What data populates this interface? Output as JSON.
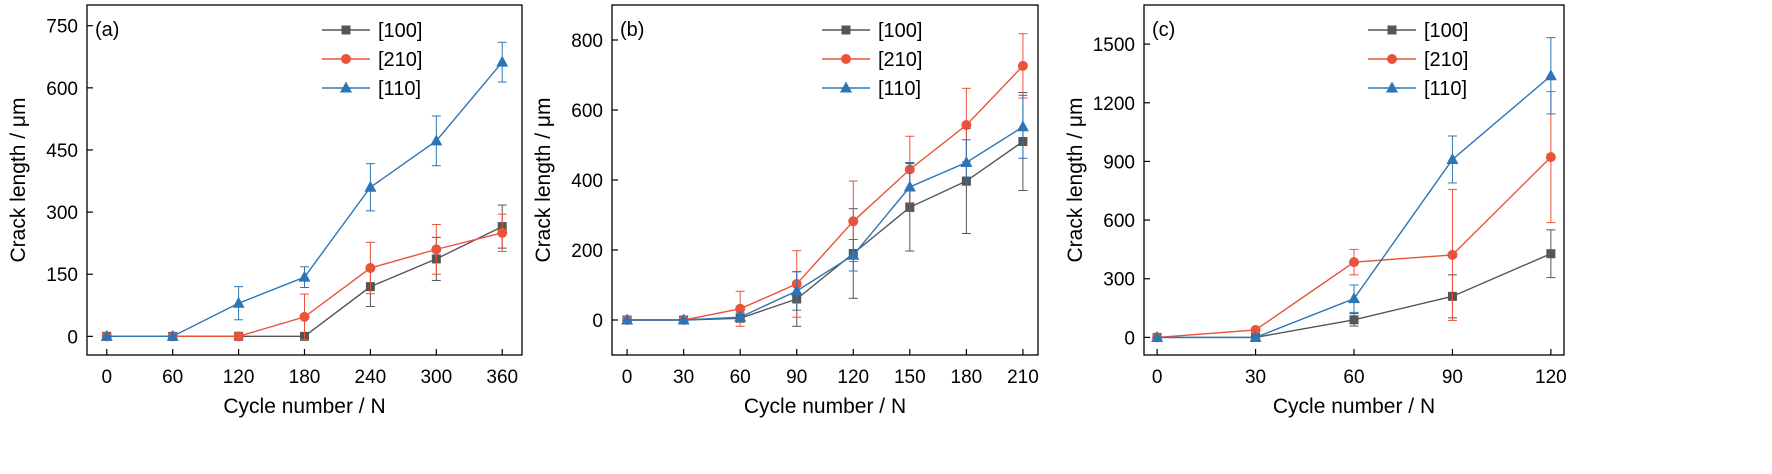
{
  "chart_data": [
    {
      "type": "line",
      "panel_label": "(a)",
      "xlabel": "Cycle number / N",
      "ylabel": "Crack length / μm",
      "x": [
        0,
        60,
        120,
        180,
        240,
        300,
        360
      ],
      "xticks": [
        "0",
        "60",
        "120",
        "180",
        "240",
        "300",
        "360"
      ],
      "yticks": [
        "0",
        "150",
        "300",
        "450",
        "600",
        "750"
      ],
      "xlim": [
        -18,
        378
      ],
      "ylim": [
        -45,
        800
      ],
      "grid": false,
      "legend": "top-right",
      "series": [
        {
          "name": "[100]",
          "color": "#555555",
          "marker": "square",
          "values": [
            0,
            0,
            0,
            0,
            120,
            187,
            265
          ],
          "errors": [
            0,
            0,
            0,
            0,
            48,
            52,
            52
          ]
        },
        {
          "name": "[210]",
          "color": "#e8533a",
          "marker": "circle",
          "values": [
            0,
            0,
            0,
            47,
            165,
            210,
            250
          ],
          "errors": [
            0,
            0,
            0,
            55,
            62,
            60,
            45
          ]
        },
        {
          "name": "[110]",
          "color": "#2e75b6",
          "marker": "triangle",
          "values": [
            0,
            0,
            80,
            143,
            360,
            472,
            662
          ],
          "errors": [
            0,
            0,
            40,
            25,
            57,
            60,
            48
          ]
        }
      ]
    },
    {
      "type": "line",
      "panel_label": "(b)",
      "xlabel": "Cycle number / N",
      "ylabel": "Crack length / μm",
      "x": [
        0,
        30,
        60,
        90,
        120,
        150,
        180,
        210
      ],
      "xticks": [
        "0",
        "30",
        "60",
        "90",
        "120",
        "150",
        "180",
        "210"
      ],
      "yticks": [
        "0",
        "200",
        "400",
        "600",
        "800"
      ],
      "xlim": [
        -8,
        218
      ],
      "ylim": [
        -100,
        900
      ],
      "grid": false,
      "legend": "top-center",
      "series": [
        {
          "name": "[100]",
          "color": "#555555",
          "marker": "square",
          "values": [
            0,
            0,
            5,
            60,
            190,
            322,
            397,
            510
          ],
          "errors": [
            0,
            0,
            10,
            78,
            128,
            125,
            150,
            140
          ]
        },
        {
          "name": "[210]",
          "color": "#e8533a",
          "marker": "circle",
          "values": [
            0,
            0,
            32,
            103,
            282,
            430,
            557,
            726
          ],
          "errors": [
            0,
            0,
            50,
            95,
            115,
            95,
            105,
            92
          ]
        },
        {
          "name": "[110]",
          "color": "#2e75b6",
          "marker": "triangle",
          "values": [
            0,
            0,
            8,
            83,
            185,
            380,
            450,
            552
          ],
          "errors": [
            0,
            0,
            12,
            55,
            45,
            70,
            65,
            90
          ]
        }
      ]
    },
    {
      "type": "line",
      "panel_label": "(c)",
      "xlabel": "Cycle number / N",
      "ylabel": "Crack length / μm",
      "x": [
        0,
        30,
        60,
        90,
        120
      ],
      "xticks": [
        "0",
        "30",
        "60",
        "90",
        "120"
      ],
      "yticks": [
        "0",
        "300",
        "600",
        "900",
        "1200",
        "1500"
      ],
      "xlim": [
        -4,
        124
      ],
      "ylim": [
        -90,
        1700
      ],
      "grid": false,
      "legend": "top-center",
      "series": [
        {
          "name": "[100]",
          "color": "#555555",
          "marker": "square",
          "values": [
            0,
            0,
            90,
            210,
            428
          ],
          "errors": [
            0,
            0,
            32,
            110,
            122
          ]
        },
        {
          "name": "[210]",
          "color": "#e8533a",
          "marker": "circle",
          "values": [
            0,
            38,
            385,
            422,
            922
          ],
          "errors": [
            0,
            0,
            65,
            335,
            335
          ]
        },
        {
          "name": "[110]",
          "color": "#2e75b6",
          "marker": "triangle",
          "values": [
            0,
            0,
            198,
            910,
            1338
          ],
          "errors": [
            0,
            0,
            70,
            120,
            195
          ]
        }
      ]
    }
  ]
}
